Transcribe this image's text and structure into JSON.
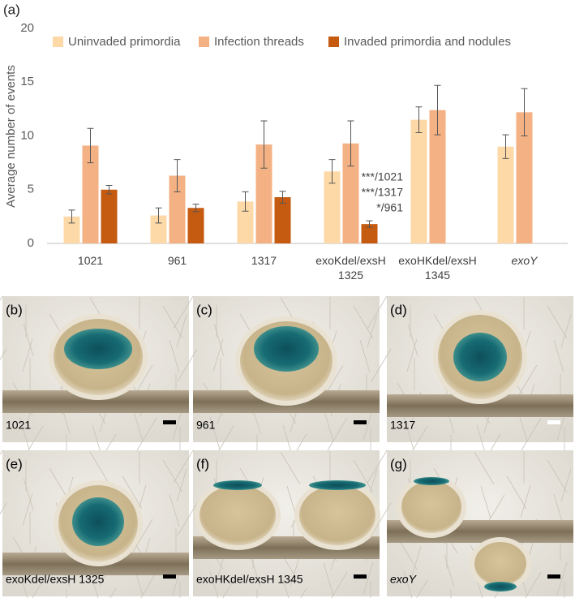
{
  "chart_data": {
    "type": "bar",
    "panel_label": "(a)",
    "ylabel": "Average number of events",
    "categories": [
      "1021",
      "961",
      "1317",
      "exoKdel/exsH 1325",
      "exoHKdel/exsH 1345",
      "exoY"
    ],
    "series": [
      {
        "name": "Uninvaded primordia",
        "color": "#fdd9a8",
        "values": [
          2.5,
          2.6,
          3.9,
          6.7,
          11.5,
          9.0
        ],
        "errors": [
          0.6,
          0.7,
          0.9,
          1.1,
          1.2,
          1.1
        ]
      },
      {
        "name": "Infection threads",
        "color": "#f4b183",
        "values": [
          9.1,
          6.3,
          9.2,
          9.3,
          12.4,
          12.2
        ],
        "errors": [
          1.6,
          1.5,
          2.2,
          2.1,
          2.3,
          2.2
        ]
      },
      {
        "name": "Invaded primordia and nodules",
        "color": "#c55a11",
        "values": [
          5.0,
          3.3,
          4.3,
          1.8,
          null,
          null
        ],
        "errors": [
          0.4,
          0.35,
          0.55,
          0.3,
          null,
          null
        ]
      }
    ],
    "annotations": [
      "***/1021",
      "***/1317",
      "*/961"
    ],
    "ylim": [
      0,
      20
    ],
    "yticks": [
      0,
      5,
      10,
      15,
      20
    ],
    "grid": false,
    "legend": "top"
  },
  "panels": [
    {
      "label": "(b)",
      "caption": "1021"
    },
    {
      "label": "(c)",
      "caption": "961"
    },
    {
      "label": "(d)",
      "caption": "1317"
    },
    {
      "label": "(e)",
      "caption": "exoKdel/exsH 1325"
    },
    {
      "label": "(f)",
      "caption": "exoHKdel/exsH 1345"
    },
    {
      "label": "(g)",
      "caption": "exoY"
    }
  ]
}
